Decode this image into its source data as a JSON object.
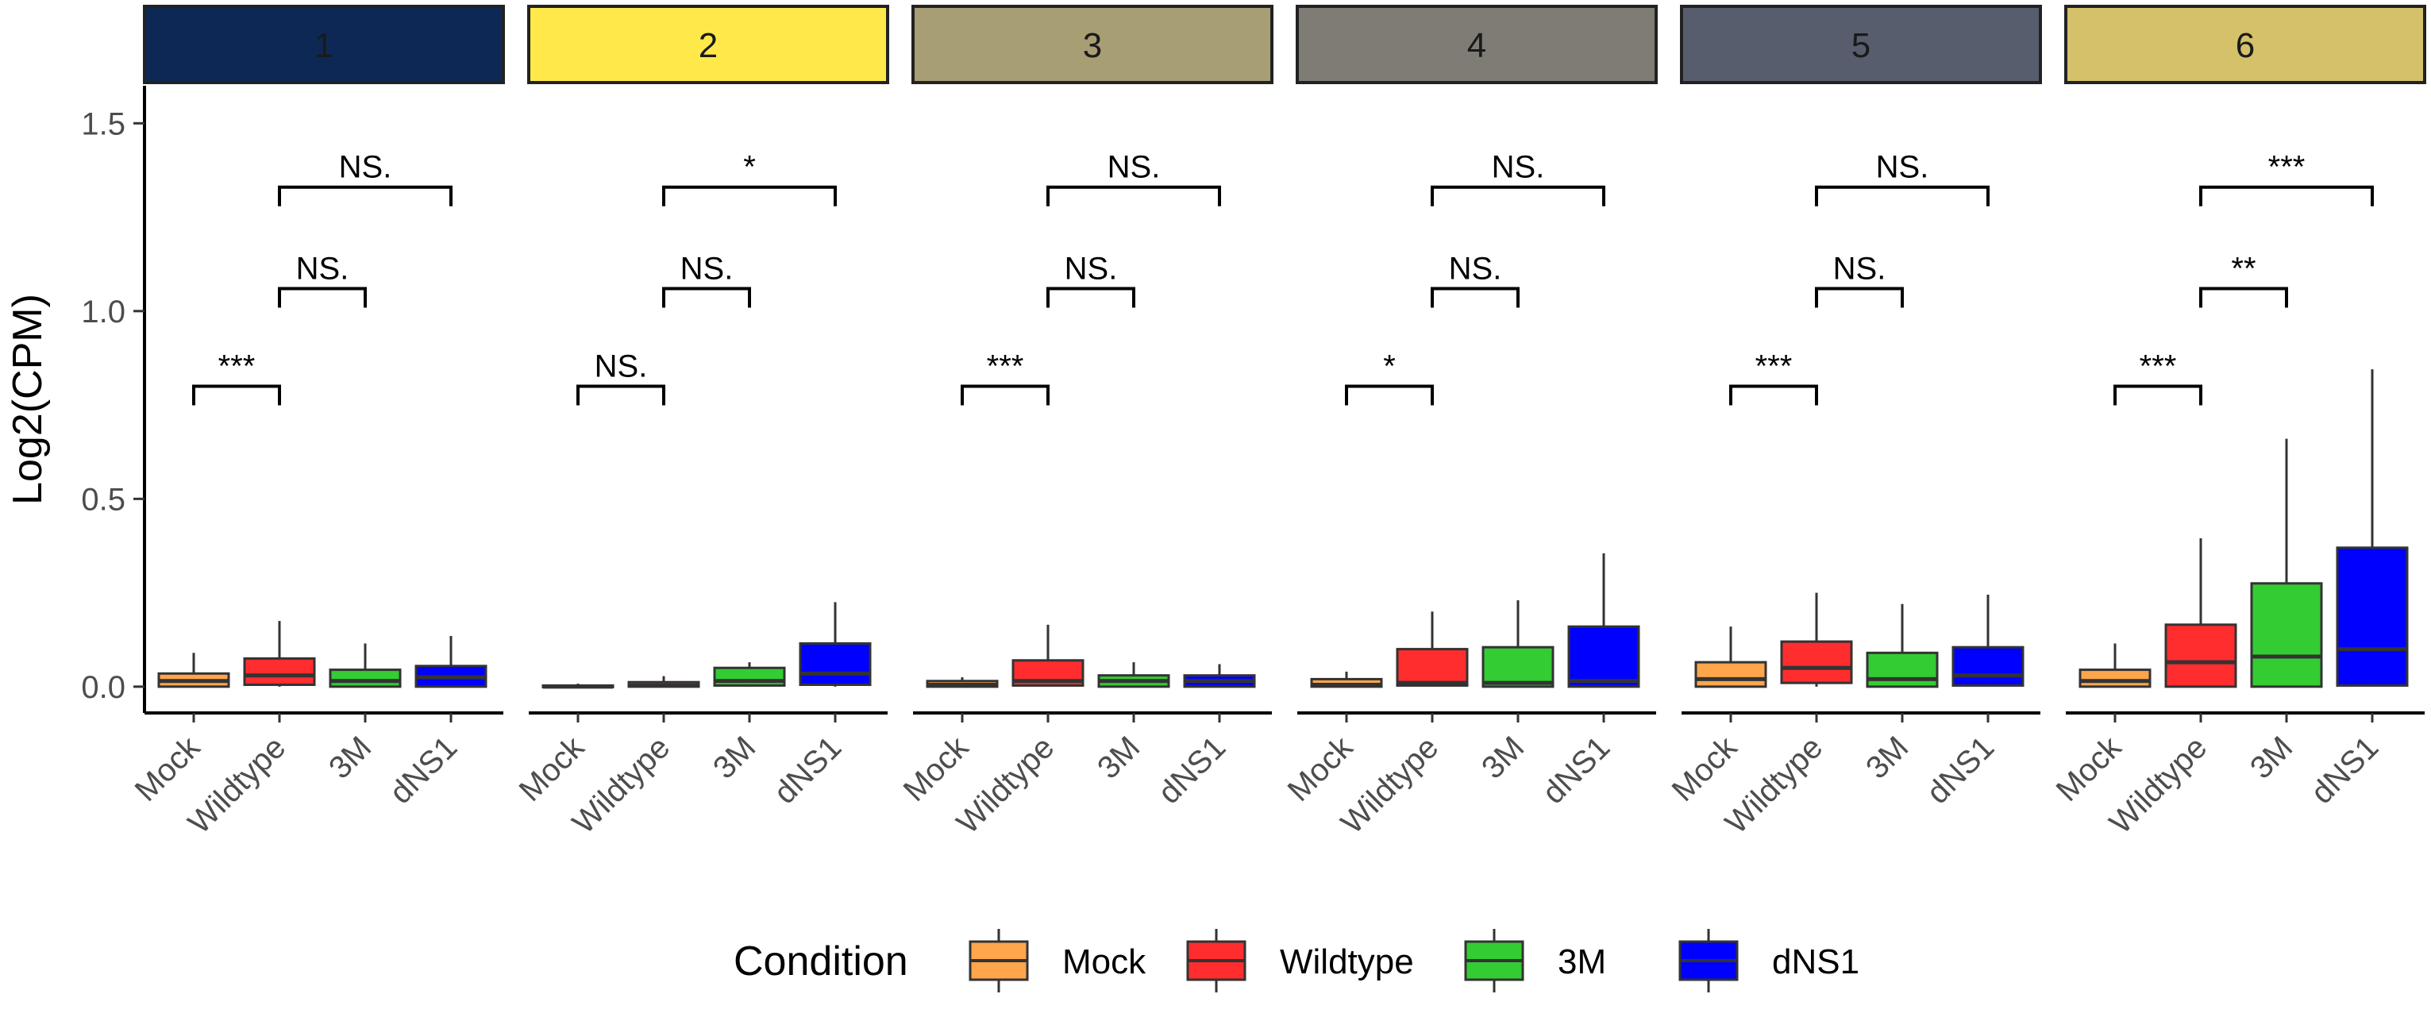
{
  "chart_data": {
    "type": "boxplot",
    "ylabel": "Log2(CPM)",
    "ylim": [
      -0.07,
      1.6
    ],
    "yticks": [
      0.0,
      0.5,
      1.0,
      1.5
    ],
    "ytick_labels": [
      "0.0",
      "0.5",
      "1.0",
      "1.5"
    ],
    "categories": [
      "Mock",
      "Wildtype",
      "3M",
      "dNS1"
    ],
    "legend": {
      "title": "Condition",
      "position": "bottom",
      "entries": [
        "Mock",
        "Wildtype",
        "3M",
        "dNS1"
      ]
    },
    "colors": {
      "Mock": "#FFA64D",
      "Wildtype": "#FF2D2D",
      "3M": "#33CC33",
      "dNS1": "#0000FF",
      "box_outline": "#333333"
    },
    "facets": [
      {
        "label": "1",
        "strip_color": "#0E2855",
        "boxes": [
          {
            "category": "Mock",
            "min": 0.0,
            "q1": 0.0,
            "median": 0.015,
            "q3": 0.035,
            "max": 0.09
          },
          {
            "category": "Wildtype",
            "min": 0.0,
            "q1": 0.005,
            "median": 0.03,
            "q3": 0.075,
            "max": 0.175
          },
          {
            "category": "3M",
            "min": 0.0,
            "q1": 0.0,
            "median": 0.015,
            "q3": 0.045,
            "max": 0.115
          },
          {
            "category": "dNS1",
            "min": 0.0,
            "q1": 0.0,
            "median": 0.025,
            "q3": 0.055,
            "max": 0.135
          }
        ],
        "comparisons": [
          {
            "from": "Mock",
            "to": "Wildtype",
            "y": 0.8,
            "label": "***"
          },
          {
            "from": "Wildtype",
            "to": "3M",
            "y": 1.06,
            "label": "NS."
          },
          {
            "from": "Wildtype",
            "to": "dNS1",
            "y": 1.33,
            "label": "NS."
          }
        ]
      },
      {
        "label": "2",
        "strip_color": "#FFE94A",
        "boxes": [
          {
            "category": "Mock",
            "min": 0.0,
            "q1": 0.0,
            "median": 0.0,
            "q3": 0.003,
            "max": 0.008
          },
          {
            "category": "Wildtype",
            "min": 0.0,
            "q1": 0.0,
            "median": 0.003,
            "q3": 0.012,
            "max": 0.028
          },
          {
            "category": "3M",
            "min": 0.0,
            "q1": 0.003,
            "median": 0.015,
            "q3": 0.05,
            "max": 0.065
          },
          {
            "category": "dNS1",
            "min": 0.0,
            "q1": 0.005,
            "median": 0.035,
            "q3": 0.115,
            "max": 0.225
          }
        ],
        "comparisons": [
          {
            "from": "Mock",
            "to": "Wildtype",
            "y": 0.8,
            "label": "NS."
          },
          {
            "from": "Wildtype",
            "to": "3M",
            "y": 1.06,
            "label": "NS."
          },
          {
            "from": "Wildtype",
            "to": "dNS1",
            "y": 1.33,
            "label": "*"
          }
        ]
      },
      {
        "label": "3",
        "strip_color": "#A89E74",
        "boxes": [
          {
            "category": "Mock",
            "min": 0.0,
            "q1": 0.0,
            "median": 0.005,
            "q3": 0.015,
            "max": 0.025
          },
          {
            "category": "Wildtype",
            "min": 0.0,
            "q1": 0.003,
            "median": 0.015,
            "q3": 0.07,
            "max": 0.165
          },
          {
            "category": "3M",
            "min": 0.0,
            "q1": 0.0,
            "median": 0.015,
            "q3": 0.03,
            "max": 0.065
          },
          {
            "category": "dNS1",
            "min": 0.0,
            "q1": 0.0,
            "median": 0.015,
            "q3": 0.03,
            "max": 0.06
          }
        ],
        "comparisons": [
          {
            "from": "Mock",
            "to": "Wildtype",
            "y": 0.8,
            "label": "***"
          },
          {
            "from": "Wildtype",
            "to": "3M",
            "y": 1.06,
            "label": "NS."
          },
          {
            "from": "Wildtype",
            "to": "dNS1",
            "y": 1.33,
            "label": "NS."
          }
        ]
      },
      {
        "label": "4",
        "strip_color": "#7F7C75",
        "boxes": [
          {
            "category": "Mock",
            "min": 0.0,
            "q1": 0.0,
            "median": 0.005,
            "q3": 0.02,
            "max": 0.04
          },
          {
            "category": "Wildtype",
            "min": 0.0,
            "q1": 0.003,
            "median": 0.01,
            "q3": 0.1,
            "max": 0.2
          },
          {
            "category": "3M",
            "min": 0.0,
            "q1": 0.0,
            "median": 0.01,
            "q3": 0.105,
            "max": 0.23
          },
          {
            "category": "dNS1",
            "min": 0.0,
            "q1": 0.0,
            "median": 0.015,
            "q3": 0.16,
            "max": 0.355
          }
        ],
        "comparisons": [
          {
            "from": "Mock",
            "to": "Wildtype",
            "y": 0.8,
            "label": "*"
          },
          {
            "from": "Wildtype",
            "to": "3M",
            "y": 1.06,
            "label": "NS."
          },
          {
            "from": "Wildtype",
            "to": "dNS1",
            "y": 1.33,
            "label": "NS."
          }
        ]
      },
      {
        "label": "5",
        "strip_color": "#575D6D",
        "boxes": [
          {
            "category": "Mock",
            "min": 0.0,
            "q1": 0.0,
            "median": 0.02,
            "q3": 0.065,
            "max": 0.16
          },
          {
            "category": "Wildtype",
            "min": 0.0,
            "q1": 0.01,
            "median": 0.05,
            "q3": 0.12,
            "max": 0.25
          },
          {
            "category": "3M",
            "min": 0.0,
            "q1": 0.0,
            "median": 0.02,
            "q3": 0.09,
            "max": 0.22
          },
          {
            "category": "dNS1",
            "min": 0.0,
            "q1": 0.003,
            "median": 0.03,
            "q3": 0.105,
            "max": 0.245
          }
        ],
        "comparisons": [
          {
            "from": "Mock",
            "to": "Wildtype",
            "y": 0.8,
            "label": "***"
          },
          {
            "from": "Wildtype",
            "to": "3M",
            "y": 1.06,
            "label": "NS."
          },
          {
            "from": "Wildtype",
            "to": "dNS1",
            "y": 1.33,
            "label": "NS."
          }
        ]
      },
      {
        "label": "6",
        "strip_color": "#D4C16A",
        "boxes": [
          {
            "category": "Mock",
            "min": 0.0,
            "q1": 0.0,
            "median": 0.015,
            "q3": 0.045,
            "max": 0.115
          },
          {
            "category": "Wildtype",
            "min": 0.0,
            "q1": 0.0,
            "median": 0.065,
            "q3": 0.165,
            "max": 0.395
          },
          {
            "category": "3M",
            "min": 0.0,
            "q1": 0.0,
            "median": 0.08,
            "q3": 0.275,
            "max": 0.66
          },
          {
            "category": "dNS1",
            "min": 0.0,
            "q1": 0.003,
            "median": 0.1,
            "q3": 0.37,
            "max": 0.845
          }
        ],
        "comparisons": [
          {
            "from": "Mock",
            "to": "Wildtype",
            "y": 0.8,
            "label": "***"
          },
          {
            "from": "Wildtype",
            "to": "3M",
            "y": 1.06,
            "label": "**"
          },
          {
            "from": "Wildtype",
            "to": "dNS1",
            "y": 1.33,
            "label": "***"
          }
        ]
      }
    ]
  }
}
